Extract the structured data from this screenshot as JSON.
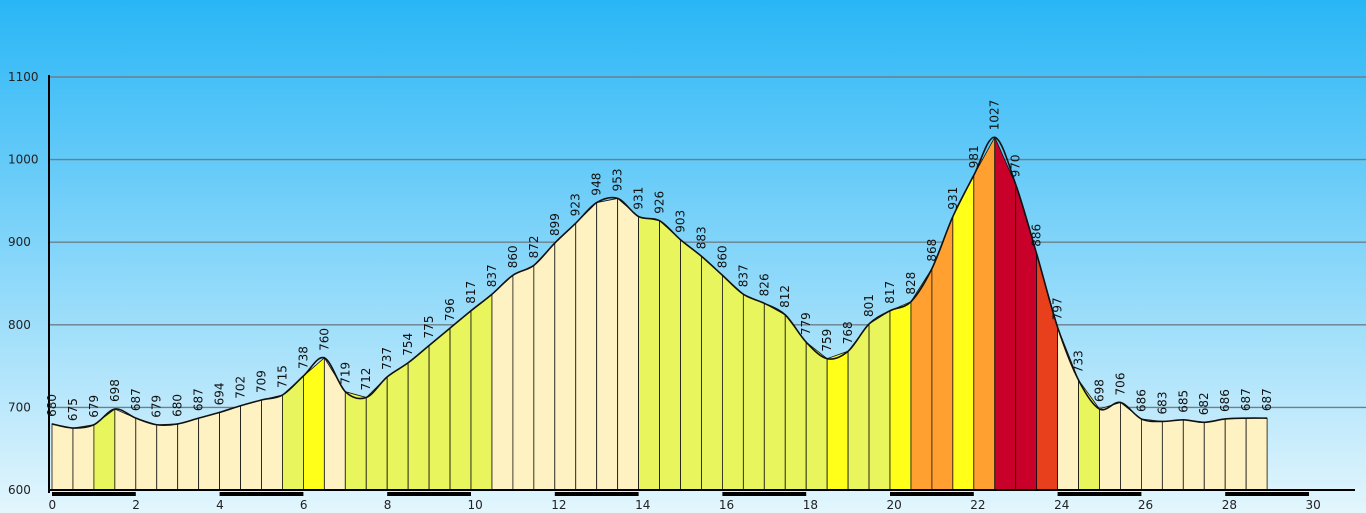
{
  "chart_data": {
    "type": "area",
    "title": "",
    "xlabel": "",
    "ylabel": "",
    "xlim": [
      0,
      31
    ],
    "ylim": [
      600,
      1100
    ],
    "y_ticks": [
      600,
      700,
      800,
      900,
      1000,
      1100
    ],
    "x_ticks": [
      0,
      2,
      4,
      6,
      8,
      10,
      12,
      14,
      16,
      18,
      20,
      22,
      24,
      26,
      28,
      30
    ],
    "grid": true,
    "colors": {
      "sky_top": "#29b6f6",
      "sky_bottom": "#e3f6fd",
      "level_1": "#fff2c2",
      "level_2": "#e8f55c",
      "level_3": "#ffff1a",
      "level_4": "#ffa030",
      "level_5": "#c8002a",
      "level_6": "#e8401c"
    },
    "points": [
      {
        "x": 0.0,
        "y": 680
      },
      {
        "x": 0.5,
        "y": 675
      },
      {
        "x": 1.0,
        "y": 679
      },
      {
        "x": 1.5,
        "y": 698
      },
      {
        "x": 2.0,
        "y": 687
      },
      {
        "x": 2.5,
        "y": 679
      },
      {
        "x": 3.0,
        "y": 680
      },
      {
        "x": 3.5,
        "y": 687
      },
      {
        "x": 4.0,
        "y": 694
      },
      {
        "x": 4.5,
        "y": 702
      },
      {
        "x": 5.0,
        "y": 709
      },
      {
        "x": 5.5,
        "y": 715
      },
      {
        "x": 6.0,
        "y": 738
      },
      {
        "x": 6.5,
        "y": 760
      },
      {
        "x": 7.0,
        "y": 719
      },
      {
        "x": 7.5,
        "y": 712
      },
      {
        "x": 8.0,
        "y": 737
      },
      {
        "x": 8.5,
        "y": 754
      },
      {
        "x": 9.0,
        "y": 775
      },
      {
        "x": 9.5,
        "y": 796
      },
      {
        "x": 10.0,
        "y": 817
      },
      {
        "x": 10.5,
        "y": 837
      },
      {
        "x": 11.0,
        "y": 860
      },
      {
        "x": 11.5,
        "y": 872
      },
      {
        "x": 12.0,
        "y": 899
      },
      {
        "x": 12.5,
        "y": 923
      },
      {
        "x": 13.0,
        "y": 948
      },
      {
        "x": 13.5,
        "y": 953
      },
      {
        "x": 14.0,
        "y": 931
      },
      {
        "x": 14.5,
        "y": 926
      },
      {
        "x": 15.0,
        "y": 903
      },
      {
        "x": 15.5,
        "y": 883
      },
      {
        "x": 16.0,
        "y": 860
      },
      {
        "x": 16.5,
        "y": 837
      },
      {
        "x": 17.0,
        "y": 826
      },
      {
        "x": 17.5,
        "y": 812
      },
      {
        "x": 18.0,
        "y": 779
      },
      {
        "x": 18.5,
        "y": 759
      },
      {
        "x": 19.0,
        "y": 768
      },
      {
        "x": 19.5,
        "y": 801
      },
      {
        "x": 20.0,
        "y": 817
      },
      {
        "x": 20.5,
        "y": 828
      },
      {
        "x": 21.0,
        "y": 868
      },
      {
        "x": 21.5,
        "y": 931
      },
      {
        "x": 22.0,
        "y": 981
      },
      {
        "x": 22.5,
        "y": 1027
      },
      {
        "x": 23.0,
        "y": 970
      },
      {
        "x": 23.5,
        "y": 886
      },
      {
        "x": 24.0,
        "y": 797
      },
      {
        "x": 24.5,
        "y": 733
      },
      {
        "x": 25.0,
        "y": 698
      },
      {
        "x": 25.5,
        "y": 706
      },
      {
        "x": 26.0,
        "y": 686
      },
      {
        "x": 26.5,
        "y": 683
      },
      {
        "x": 27.0,
        "y": 685
      },
      {
        "x": 27.5,
        "y": 682
      },
      {
        "x": 28.0,
        "y": 686
      },
      {
        "x": 28.5,
        "y": 687
      },
      {
        "x": 29.0,
        "y": 687
      }
    ],
    "segment_levels": [
      1,
      1,
      2,
      1,
      1,
      1,
      1,
      1,
      1,
      1,
      1,
      2,
      3,
      1,
      2,
      2,
      2,
      2,
      2,
      2,
      2,
      1,
      1,
      1,
      1,
      1,
      1,
      1,
      2,
      2,
      2,
      2,
      2,
      2,
      2,
      2,
      2,
      3,
      2,
      2,
      3,
      4,
      4,
      3,
      4,
      5,
      5,
      6,
      1,
      2,
      1,
      1,
      1,
      1,
      1,
      1,
      1,
      1
    ]
  }
}
